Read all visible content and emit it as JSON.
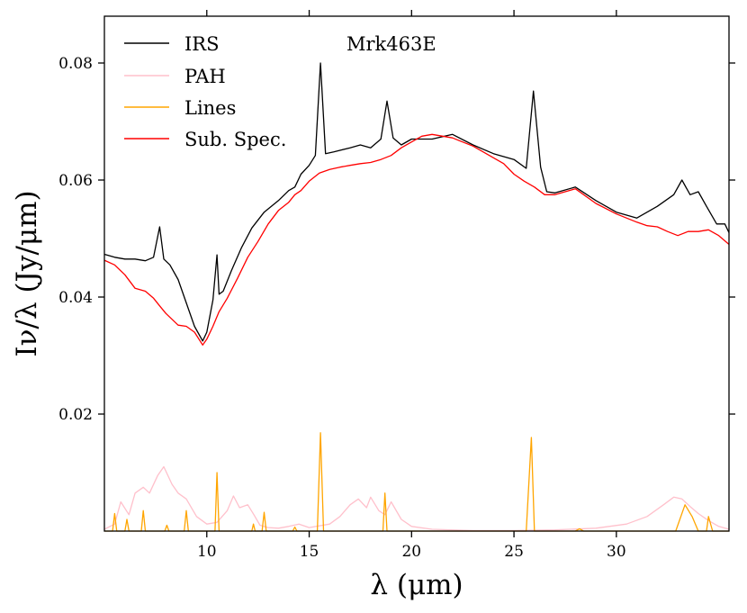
{
  "chart_data": {
    "type": "line",
    "title": "Mrk463E",
    "xlabel": "λ (μm)",
    "ylabel": "Iν/λ (Jy/μm)",
    "xlim": [
      5.0,
      35.5
    ],
    "ylim": [
      0.0,
      0.088
    ],
    "xticks": [
      10,
      15,
      20,
      25,
      30
    ],
    "yticks": [
      0.02,
      0.04,
      0.06,
      0.08
    ],
    "xtick_labels": [
      "10",
      "15",
      "20",
      "25",
      "30"
    ],
    "ytick_labels": [
      "0.02",
      "0.04",
      "0.06",
      "0.08"
    ],
    "grid": false,
    "legend_position": "top-left",
    "series": [
      {
        "name": "IRS",
        "color": "#000000",
        "x": [
          5.0,
          5.5,
          6.0,
          6.5,
          7.0,
          7.4,
          7.7,
          7.9,
          8.2,
          8.6,
          9.0,
          9.4,
          9.8,
          10.0,
          10.3,
          10.5,
          10.6,
          10.8,
          11.2,
          11.7,
          12.2,
          12.8,
          13.5,
          14.0,
          14.3,
          14.6,
          15.0,
          15.3,
          15.55,
          15.8,
          16.2,
          17.0,
          17.5,
          18.0,
          18.5,
          18.8,
          19.1,
          19.5,
          20.0,
          21.0,
          22.0,
          23.0,
          24.0,
          25.0,
          25.6,
          25.95,
          26.3,
          26.6,
          27.0,
          28.0,
          29.0,
          30.0,
          31.0,
          32.0,
          32.8,
          33.2,
          33.6,
          34.0,
          34.4,
          34.9,
          35.3,
          35.5
        ],
        "y": [
          0.0473,
          0.0468,
          0.0465,
          0.0465,
          0.0462,
          0.0468,
          0.052,
          0.0465,
          0.0455,
          0.043,
          0.039,
          0.035,
          0.0325,
          0.034,
          0.0395,
          0.0472,
          0.0405,
          0.041,
          0.0445,
          0.0485,
          0.0518,
          0.0545,
          0.0565,
          0.0582,
          0.0588,
          0.061,
          0.0625,
          0.0642,
          0.08,
          0.0645,
          0.0648,
          0.0655,
          0.066,
          0.0655,
          0.067,
          0.0735,
          0.0672,
          0.066,
          0.067,
          0.067,
          0.0678,
          0.066,
          0.0645,
          0.0635,
          0.062,
          0.0752,
          0.0622,
          0.058,
          0.0578,
          0.0588,
          0.0565,
          0.0545,
          0.0535,
          0.0555,
          0.0575,
          0.06,
          0.0575,
          0.058,
          0.0555,
          0.0525,
          0.0525,
          0.051
        ]
      },
      {
        "name": "PAH",
        "color": "#ffc0cb",
        "x": [
          5.0,
          5.5,
          5.8,
          6.2,
          6.5,
          6.9,
          7.2,
          7.6,
          7.9,
          8.3,
          8.6,
          9.0,
          9.5,
          10.0,
          10.5,
          11.0,
          11.3,
          11.6,
          12.0,
          12.3,
          12.6,
          13.0,
          13.5,
          14.0,
          14.5,
          15.0,
          16.0,
          16.5,
          17.0,
          17.4,
          17.8,
          18.0,
          18.4,
          18.7,
          19.0,
          19.5,
          20.0,
          21.0,
          23.0,
          25.0,
          27.0,
          29.0,
          30.5,
          31.5,
          32.3,
          32.8,
          33.2,
          33.6,
          34.0,
          34.5,
          35.0,
          35.5
        ],
        "y": [
          0.0003,
          0.0012,
          0.005,
          0.0028,
          0.0065,
          0.0075,
          0.0065,
          0.0095,
          0.011,
          0.008,
          0.0065,
          0.0055,
          0.0025,
          0.0012,
          0.0015,
          0.0035,
          0.006,
          0.004,
          0.0045,
          0.0028,
          0.001,
          0.0006,
          0.0005,
          0.0008,
          0.0012,
          0.0006,
          0.0012,
          0.0025,
          0.0045,
          0.0055,
          0.004,
          0.0058,
          0.0035,
          0.0028,
          0.005,
          0.002,
          0.0008,
          0.0003,
          0.0001,
          0.0001,
          0.0002,
          0.0005,
          0.0012,
          0.0025,
          0.0045,
          0.0058,
          0.0055,
          0.0042,
          0.003,
          0.0018,
          0.0008,
          0.0003
        ]
      },
      {
        "name": "Lines",
        "color": "#ffa500",
        "x": [
          5.0,
          5.4,
          5.5,
          5.6,
          6.0,
          6.1,
          6.2,
          6.8,
          6.9,
          7.0,
          7.5,
          7.95,
          8.05,
          8.15,
          8.9,
          9.0,
          9.1,
          10.4,
          10.5,
          10.6,
          12.2,
          12.28,
          12.36,
          12.7,
          12.8,
          12.9,
          14.2,
          14.3,
          14.4,
          15.4,
          15.55,
          15.7,
          18.6,
          18.7,
          18.8,
          19.0,
          25.6,
          25.85,
          26.0,
          26.2,
          26.4,
          28.0,
          28.2,
          28.4,
          32.9,
          33.35,
          33.7,
          34.0,
          34.4,
          34.5,
          34.7,
          35.5
        ],
        "y": [
          0.0,
          0.0,
          0.003,
          0.0,
          0.0,
          0.002,
          0.0,
          0.0,
          0.0035,
          0.0,
          0.0,
          0.0,
          0.001,
          0.0,
          0.0,
          0.0035,
          0.0,
          0.0,
          0.01,
          0.0,
          0.0,
          0.0012,
          0.0,
          0.0,
          0.0032,
          0.0,
          0.0,
          0.0007,
          0.0,
          0.0,
          0.0168,
          0.0,
          0.0,
          0.0065,
          0.0,
          0.0,
          0.0,
          0.016,
          0.0,
          0.0,
          0.0,
          0.0,
          0.0004,
          0.0,
          0.0,
          0.0045,
          0.0025,
          0.0,
          0.0,
          0.0025,
          0.0,
          0.0
        ]
      },
      {
        "name": "Sub. Spec.",
        "color": "#ff0000",
        "x": [
          5.0,
          5.5,
          6.0,
          6.5,
          7.0,
          7.4,
          7.7,
          8.0,
          8.3,
          8.6,
          9.0,
          9.4,
          9.8,
          10.0,
          10.3,
          10.6,
          11.0,
          11.5,
          12.0,
          12.5,
          13.0,
          13.5,
          14.0,
          14.3,
          14.6,
          15.0,
          15.5,
          16.0,
          16.5,
          17.0,
          17.5,
          18.0,
          18.5,
          19.0,
          19.5,
          20.0,
          20.5,
          21.0,
          22.0,
          23.0,
          24.0,
          24.5,
          25.0,
          25.5,
          26.0,
          26.5,
          27.0,
          28.0,
          29.0,
          30.0,
          31.0,
          31.5,
          32.0,
          32.5,
          33.0,
          33.5,
          34.0,
          34.5,
          35.0,
          35.5
        ],
        "y": [
          0.0463,
          0.0455,
          0.0438,
          0.0415,
          0.041,
          0.0398,
          0.0385,
          0.0372,
          0.0362,
          0.0352,
          0.035,
          0.034,
          0.0318,
          0.0328,
          0.035,
          0.0375,
          0.0398,
          0.0432,
          0.0468,
          0.0495,
          0.0525,
          0.0548,
          0.0562,
          0.0575,
          0.0582,
          0.0598,
          0.0612,
          0.0618,
          0.0622,
          0.0625,
          0.0628,
          0.063,
          0.0635,
          0.0642,
          0.0655,
          0.0665,
          0.0675,
          0.0678,
          0.0672,
          0.0658,
          0.0638,
          0.0628,
          0.061,
          0.0598,
          0.0588,
          0.0575,
          0.0575,
          0.0585,
          0.056,
          0.0542,
          0.0528,
          0.0522,
          0.052,
          0.0512,
          0.0505,
          0.0512,
          0.0512,
          0.0515,
          0.0505,
          0.049
        ]
      }
    ]
  }
}
